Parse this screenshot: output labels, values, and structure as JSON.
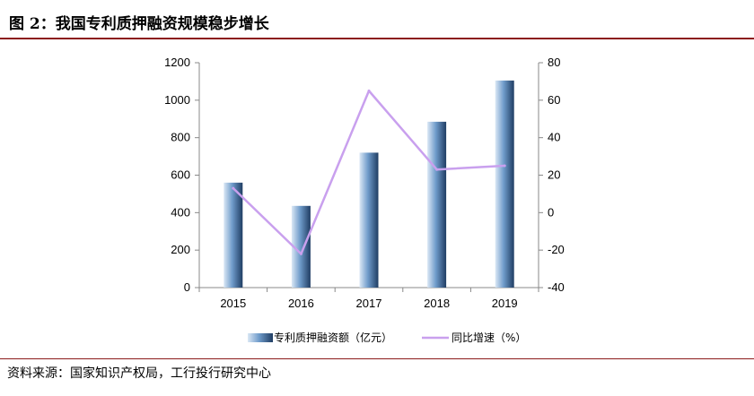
{
  "header": {
    "title": "图 2：我国专利质押融资规模稳步增长"
  },
  "footer": {
    "source": "资料来源：国家知识产权局，工行投行研究中心"
  },
  "legend": {
    "bar_label": "专利质押融资额（亿元）",
    "line_label": "同比增速（%）"
  },
  "chart_data": {
    "type": "bar",
    "categories": [
      "2015",
      "2016",
      "2017",
      "2018",
      "2019"
    ],
    "series": [
      {
        "name": "专利质押融资额（亿元）",
        "type": "bar",
        "axis": "left",
        "values": [
          560,
          436,
          720,
          885,
          1105
        ],
        "color": "#5b87b8"
      },
      {
        "name": "同比增速（%）",
        "type": "line",
        "axis": "right",
        "values": [
          13,
          -22,
          65,
          23,
          25
        ],
        "color": "#c9a0ee"
      }
    ],
    "y_left": {
      "lim": [
        0,
        1200
      ],
      "ticks": [
        "0",
        "200",
        "400",
        "600",
        "800",
        "1000",
        "1200"
      ]
    },
    "y_right": {
      "lim": [
        -40,
        80
      ],
      "ticks": [
        "-40",
        "-20",
        "0",
        "20",
        "40",
        "60",
        "80"
      ]
    },
    "grid": false,
    "legend_position": "bottom"
  }
}
